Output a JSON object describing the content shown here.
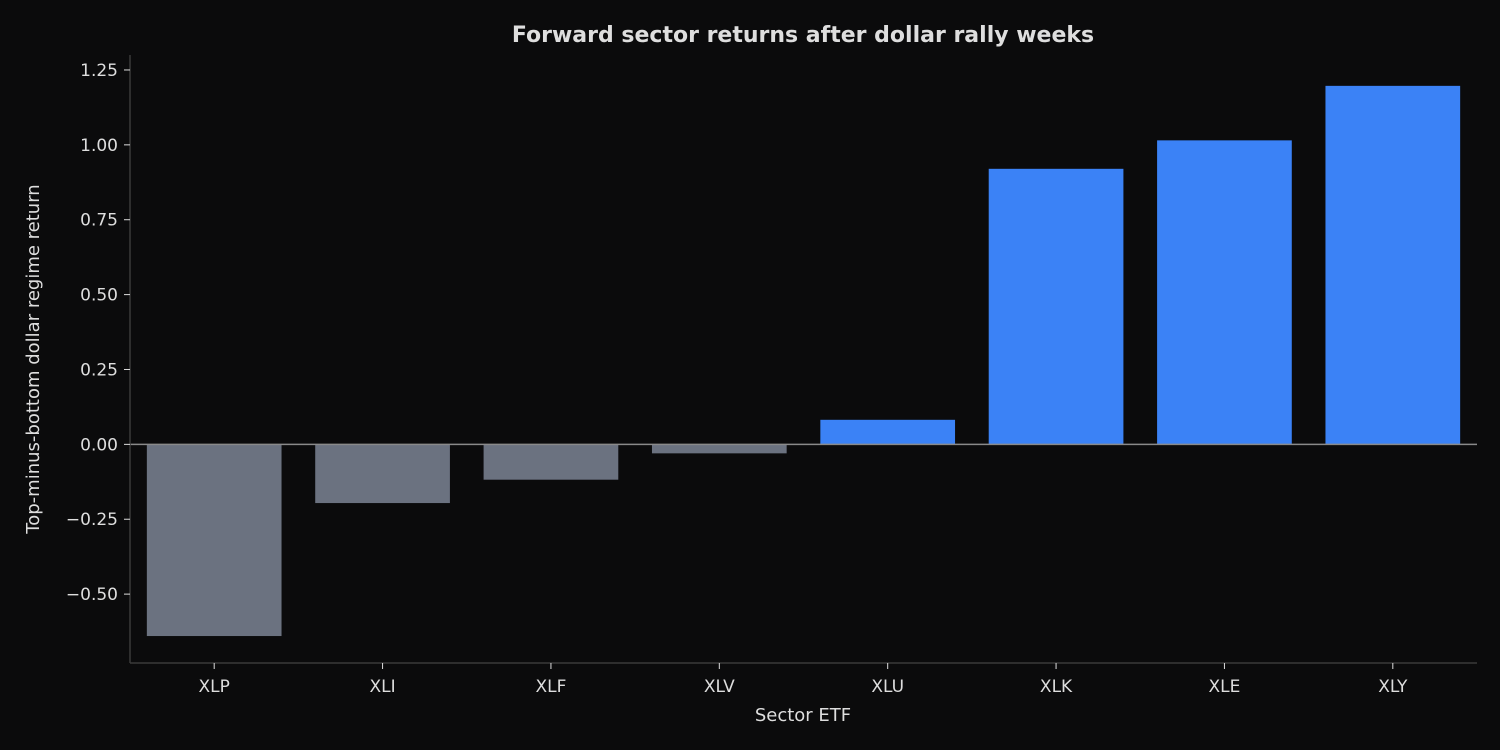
{
  "chart_data": {
    "type": "bar",
    "title": "Forward sector returns after dollar rally weeks",
    "xlabel": "Sector ETF",
    "ylabel": "Top-minus-bottom dollar regime return",
    "categories": [
      "XLP",
      "XLI",
      "XLF",
      "XLV",
      "XLU",
      "XLK",
      "XLE",
      "XLY"
    ],
    "values": [
      -0.64,
      -0.196,
      -0.118,
      -0.03,
      0.082,
      0.92,
      1.015,
      1.197
    ],
    "ylim": [
      -0.73,
      1.3
    ],
    "yticks": [
      -0.5,
      -0.25,
      0.0,
      0.25,
      0.5,
      0.75,
      1.0,
      1.25
    ],
    "ytick_labels": [
      "−0.50",
      "−0.25",
      "0.00",
      "0.25",
      "0.50",
      "0.75",
      "1.00",
      "1.25"
    ],
    "grid": false,
    "colors": {
      "positive": "#3b82f6",
      "negative": "#6b7280",
      "background": "#0b0b0c",
      "axis": "#3a3a3a",
      "zero_line": "#8a8a8a",
      "text": "#dedede"
    }
  }
}
